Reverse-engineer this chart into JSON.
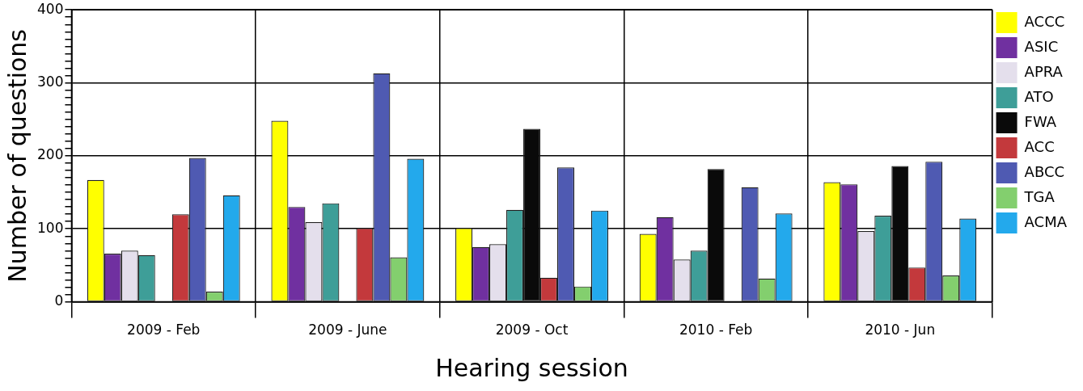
{
  "chart_data": {
    "type": "bar",
    "xlabel": "Hearing session",
    "ylabel": "Number of questions",
    "categories": [
      "2009 - Feb",
      "2009 - June",
      "2009 - Oct",
      "2010 - Feb",
      "2010 - Jun"
    ],
    "series": [
      {
        "name": "ACCC",
        "color": "#ffff00",
        "values": [
          167,
          248,
          101,
          93,
          164
        ]
      },
      {
        "name": "ASIC",
        "color": "#7030a0",
        "values": [
          66,
          130,
          75,
          116,
          161
        ]
      },
      {
        "name": "APRA",
        "color": "#e4dfec",
        "values": [
          70,
          109,
          79,
          58,
          97
        ]
      },
      {
        "name": "ATO",
        "color": "#3e9e98",
        "values": [
          64,
          135,
          126,
          70,
          118
        ]
      },
      {
        "name": "FWA",
        "color": "#0a0a0a",
        "values": [
          null,
          null,
          237,
          182,
          186
        ]
      },
      {
        "name": "ACC",
        "color": "#c3393c",
        "values": [
          120,
          101,
          33,
          null,
          47
        ]
      },
      {
        "name": "ABCC",
        "color": "#4f5ab2",
        "values": [
          197,
          313,
          184,
          157,
          192
        ]
      },
      {
        "name": "TGA",
        "color": "#83cf6e",
        "values": [
          14,
          61,
          21,
          32,
          36
        ]
      },
      {
        "name": "ACMA",
        "color": "#23a9ec",
        "values": [
          146,
          196,
          125,
          121,
          114
        ]
      }
    ],
    "ylim": [
      0,
      400
    ],
    "yticks": [
      0,
      {
        "value": 10,
        "label": null
      },
      {
        "value": 20,
        "label": null
      },
      {
        "value": 30,
        "label": null
      },
      {
        "value": 40,
        "label": null
      },
      {
        "value": 50,
        "label": null
      },
      {
        "value": 60,
        "label": null
      },
      {
        "value": 70,
        "label": null
      },
      {
        "value": 80,
        "label": null
      },
      {
        "value": 90,
        "label": null
      },
      100,
      {
        "value": 110,
        "label": null
      },
      {
        "value": 120,
        "label": null
      },
      {
        "value": 130,
        "label": null
      },
      {
        "value": 140,
        "label": null
      },
      {
        "value": 150,
        "label": null
      },
      {
        "value": 160,
        "label": null
      },
      {
        "value": 170,
        "label": null
      },
      {
        "value": 180,
        "label": null
      },
      {
        "value": 190,
        "label": null
      },
      200,
      {
        "value": 210,
        "label": null
      },
      {
        "value": 220,
        "label": null
      },
      {
        "value": 230,
        "label": null
      },
      {
        "value": 240,
        "label": null
      },
      {
        "value": 250,
        "label": null
      },
      {
        "value": 260,
        "label": null
      },
      {
        "value": 270,
        "label": null
      },
      {
        "value": 280,
        "label": null
      },
      {
        "value": 290,
        "label": null
      },
      300,
      {
        "value": 310,
        "label": null
      },
      {
        "value": 320,
        "label": null
      },
      {
        "value": 330,
        "label": null
      },
      {
        "value": 340,
        "label": null
      },
      {
        "value": 350,
        "label": null
      },
      {
        "value": 360,
        "label": null
      },
      {
        "value": 370,
        "label": null
      },
      {
        "value": 380,
        "label": null
      },
      {
        "value": 390,
        "label": null
      },
      400
    ],
    "grid": true,
    "legend": "right"
  }
}
